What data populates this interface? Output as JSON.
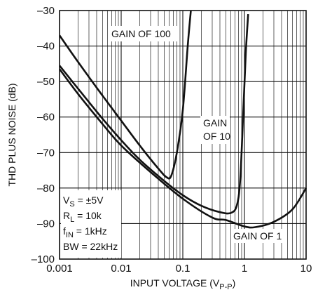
{
  "chart_data": {
    "type": "line",
    "xlabel": "INPUT VOLTAGE (V",
    "xlabel_sub": "P-P",
    "xlabel_close": ")",
    "ylabel": "THD PLUS NOISE (dB)",
    "x_scale": "log",
    "xlim": [
      0.001,
      10
    ],
    "ylim": [
      -100,
      -30
    ],
    "grid": true,
    "x_ticks": [
      {
        "value": 0.001,
        "label": "0.001"
      },
      {
        "value": 0.01,
        "label": "0.01"
      },
      {
        "value": 0.1,
        "label": "0.1"
      },
      {
        "value": 1,
        "label": "1"
      },
      {
        "value": 10,
        "label": "10"
      }
    ],
    "y_ticks": [
      {
        "value": -30,
        "label": "–30"
      },
      {
        "value": -40,
        "label": "–40"
      },
      {
        "value": -50,
        "label": "–50"
      },
      {
        "value": -60,
        "label": "–60"
      },
      {
        "value": -70,
        "label": "–70"
      },
      {
        "value": -80,
        "label": "–80"
      },
      {
        "value": -90,
        "label": "–90"
      },
      {
        "value": -100,
        "label": "–100"
      }
    ],
    "series": [
      {
        "name": "GAIN OF 100",
        "points": [
          [
            0.001,
            -37
          ],
          [
            0.002,
            -44.5
          ],
          [
            0.005,
            -54
          ],
          [
            0.01,
            -61
          ],
          [
            0.02,
            -68
          ],
          [
            0.04,
            -74.5
          ],
          [
            0.055,
            -77
          ],
          [
            0.065,
            -76.5
          ],
          [
            0.08,
            -70
          ],
          [
            0.1,
            -58
          ],
          [
            0.12,
            -40
          ],
          [
            0.135,
            -30
          ]
        ]
      },
      {
        "name": "GAIN OF 10",
        "points": [
          [
            0.001,
            -45.5
          ],
          [
            0.002,
            -52
          ],
          [
            0.005,
            -60.5
          ],
          [
            0.01,
            -66.5
          ],
          [
            0.02,
            -72
          ],
          [
            0.05,
            -78
          ],
          [
            0.1,
            -82
          ],
          [
            0.2,
            -85
          ],
          [
            0.4,
            -86.8
          ],
          [
            0.6,
            -87
          ],
          [
            0.75,
            -85
          ],
          [
            0.85,
            -78
          ],
          [
            0.95,
            -60
          ],
          [
            1.05,
            -42
          ],
          [
            1.15,
            -31
          ]
        ]
      },
      {
        "name": "GAIN OF 1",
        "points": [
          [
            0.001,
            -46.5
          ],
          [
            0.002,
            -53.5
          ],
          [
            0.005,
            -62
          ],
          [
            0.01,
            -68
          ],
          [
            0.03,
            -75.5
          ],
          [
            0.1,
            -83
          ],
          [
            0.3,
            -88.3
          ],
          [
            0.5,
            -89
          ],
          [
            1,
            -90.8
          ],
          [
            1.5,
            -91
          ],
          [
            3,
            -89.5
          ],
          [
            6,
            -86
          ],
          [
            10,
            -80
          ]
        ]
      }
    ],
    "annotations": [
      {
        "id": "g100",
        "text": "GAIN OF 100"
      },
      {
        "id": "g10a",
        "text": "GAIN"
      },
      {
        "id": "g10b",
        "text": "OF 10"
      },
      {
        "id": "g1",
        "text": "GAIN OF 1"
      }
    ],
    "conditions": {
      "vs_main": "V",
      "vs_sub": "S",
      "vs_val": " = ±5V",
      "rl_main": "R",
      "rl_sub": "L",
      "rl_val": " = 10k",
      "fin_main": "f",
      "fin_sub": "IN",
      "fin_val": " = 1kHz",
      "bw": "BW = 22kHz"
    }
  }
}
